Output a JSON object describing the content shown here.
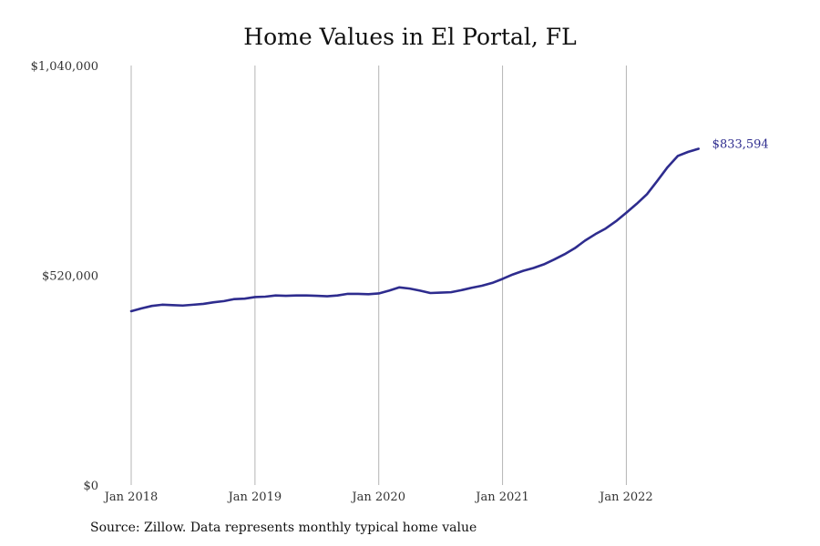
{
  "chart_data": {
    "type": "line",
    "title": "Home Values in El Portal, FL",
    "xlabel": "",
    "ylabel": "",
    "source_note": "Source: Zillow. Data represents monthly typical home value",
    "ylim": [
      0,
      1040000
    ],
    "y_ticks": [
      {
        "value": 0,
        "label": "$0"
      },
      {
        "value": 520000,
        "label": "$520,000"
      },
      {
        "value": 1040000,
        "label": "$1,040,000"
      }
    ],
    "x_ticks": [
      {
        "month_index": 0,
        "label": "Jan 2018"
      },
      {
        "month_index": 12,
        "label": "Jan 2019"
      },
      {
        "month_index": 24,
        "label": "Jan 2020"
      },
      {
        "month_index": 36,
        "label": "Jan 2021"
      },
      {
        "month_index": 48,
        "label": "Jan 2022"
      }
    ],
    "x_range": [
      0,
      56
    ],
    "grid": "vertical",
    "line_color": "#2e2c8e",
    "grid_color": "#b5b5b5",
    "end_label": "$833,594",
    "series": [
      {
        "name": "Typical home value",
        "x": [
          0,
          1,
          2,
          3,
          4,
          5,
          6,
          7,
          8,
          9,
          10,
          11,
          12,
          13,
          14,
          15,
          16,
          17,
          18,
          19,
          20,
          21,
          22,
          23,
          24,
          25,
          26,
          27,
          28,
          29,
          30,
          31,
          32,
          33,
          34,
          35,
          36,
          37,
          38,
          39,
          40,
          41,
          42,
          43,
          44,
          45,
          46,
          47,
          48,
          49,
          50,
          51,
          52,
          53,
          54,
          55,
          56
        ],
        "values": [
          431000,
          438000,
          444000,
          447000,
          446000,
          445000,
          447000,
          449000,
          453000,
          456000,
          461000,
          462000,
          466000,
          467000,
          470000,
          469000,
          470000,
          470000,
          469000,
          468000,
          470000,
          474000,
          474000,
          473000,
          475000,
          482000,
          490000,
          487000,
          482000,
          476000,
          477000,
          478000,
          483000,
          489000,
          494000,
          501000,
          511000,
          522000,
          531000,
          538000,
          547000,
          559000,
          572000,
          587000,
          606000,
          622000,
          636000,
          654000,
          675000,
          697000,
          721000,
          754000,
          788000,
          816000,
          826000,
          833594,
          833594
        ]
      }
    ]
  }
}
